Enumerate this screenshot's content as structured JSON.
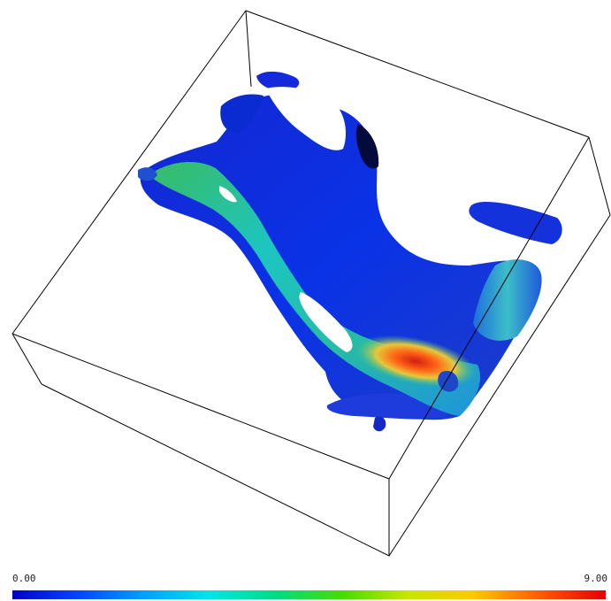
{
  "colorbar": {
    "min_label": "0.00",
    "max_label": "9.00",
    "colors": [
      "#0000c8",
      "#0046ff",
      "#00a0ff",
      "#00e6e6",
      "#00dc82",
      "#46dc00",
      "#c8e600",
      "#ffc800",
      "#ff5a00",
      "#e60000"
    ]
  },
  "scene": {
    "background": "#ffffff",
    "box_stroke": "#000000",
    "isosurface_colors": {
      "low": "#0a1ee6",
      "mid": "#1ec8c8",
      "green": "#3cc85a",
      "high": "#e61e14"
    }
  }
}
